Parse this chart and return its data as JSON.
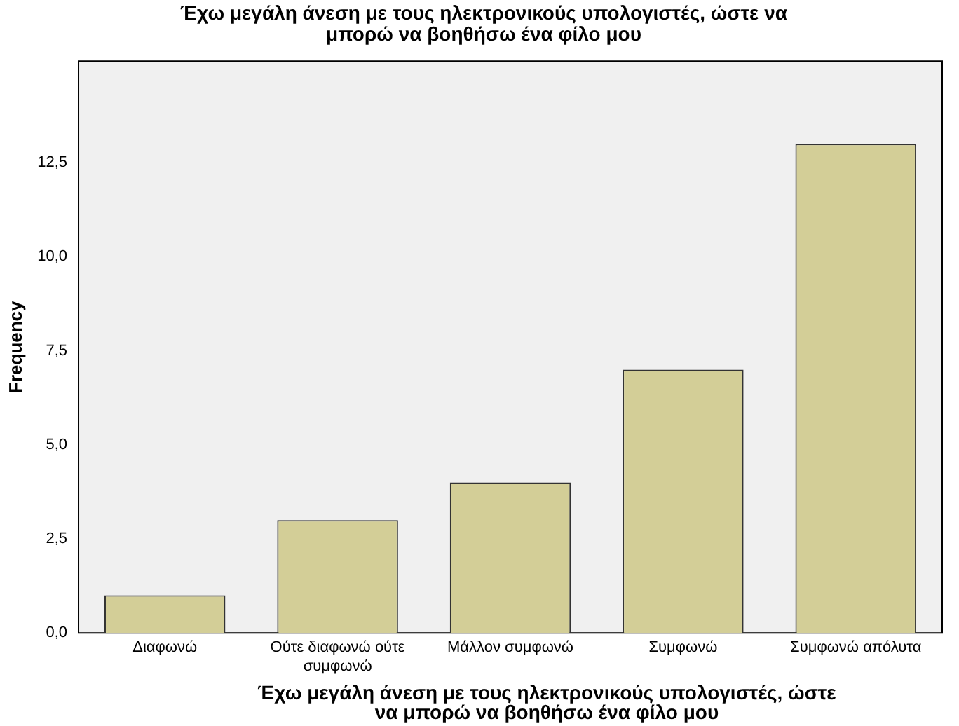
{
  "chart_data": {
    "type": "bar",
    "title": "Έχω μεγάλη άνεση με τους ηλεκτρονικούς υπολογιστές, ώστε να μπορώ να βοηθήσω ένα φίλο μου",
    "xlabel": "Έχω μεγάλη άνεση με τους ηλεκτρονικούς υπολογιστές, ώστε να μπορώ να βοηθήσω ένα φίλο μου",
    "ylabel": "Frequency",
    "categories": [
      "Διαφωνώ",
      "Ούτε διαφωνώ ούτε συμφωνώ",
      "Μάλλον συμφωνώ",
      "Συμφωνώ",
      "Συμφωνώ απόλυτα"
    ],
    "values": [
      1,
      3,
      4,
      7,
      13
    ],
    "color": "#d3ce97",
    "ylim": [
      0,
      15.2
    ],
    "yticks": [
      {
        "value": 0,
        "label": "0,0"
      },
      {
        "value": 2.5,
        "label": "2,5"
      },
      {
        "value": 5,
        "label": "5,0"
      },
      {
        "value": 7.5,
        "label": "7,5"
      },
      {
        "value": 10,
        "label": "10,0"
      },
      {
        "value": 12.5,
        "label": "12,5"
      }
    ],
    "grid": false,
    "legend": false
  }
}
